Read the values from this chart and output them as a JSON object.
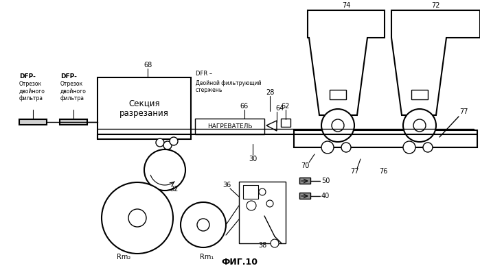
{
  "title": "ФИГ.10",
  "bg_color": "#ffffff",
  "labels": {
    "dfp1_title": "DFP-",
    "dfp1_sub": "Отрезок\nдвойного\nфильтра",
    "dfp2_title": "DFP-",
    "dfp2_sub": "Отрезок\nдвойного\nфильтра",
    "dfr_title": "DFR –",
    "dfr_sub": "Двойной фильтрующий\nстержень",
    "section_label": "Секция\nразрезания",
    "heater_label": "НАГРЕВАТЕЛЬ",
    "num_68": "68",
    "num_28": "28",
    "num_66": "66",
    "num_64": "64",
    "num_62": "62",
    "num_32": "32",
    "num_36": "36",
    "num_30": "30",
    "num_50": "50",
    "num_40": "40",
    "num_70": "70",
    "num_76": "76",
    "num_77a": "77",
    "num_77b": "77",
    "num_74": "74",
    "num_72": "72",
    "num_38": "38",
    "num_rm1": "Rm₁",
    "num_rm2": "Rm₂"
  }
}
